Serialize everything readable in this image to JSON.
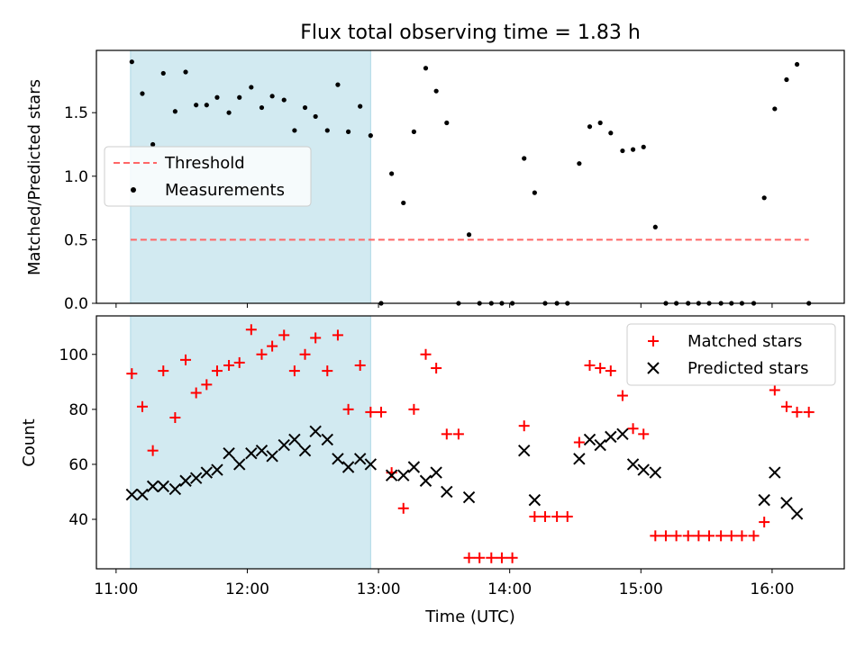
{
  "figure": {
    "title": "Flux total observing time = 1.83 h",
    "xlabel": "Time (UTC)",
    "x_ticks": [
      "11:00",
      "12:00",
      "13:00",
      "14:00",
      "15:00",
      "16:00"
    ],
    "x_tick_hours": [
      11,
      12,
      13,
      14,
      15,
      16
    ],
    "xlim": [
      10.85,
      16.55
    ],
    "shaded_interval": [
      11.11,
      12.94
    ],
    "shade_color": "#add8e6"
  },
  "chart_data": [
    {
      "type": "scatter",
      "ylabel": "Matched/Predicted stars",
      "ylim": [
        0,
        1.99
      ],
      "y_ticks": [
        "0.0",
        "0.5",
        "1.0",
        "1.5"
      ],
      "y_tick_values": [
        0,
        0.5,
        1.0,
        1.5
      ],
      "legend": "center-left",
      "threshold": {
        "name": "Threshold",
        "y": 0.5,
        "x_range": [
          11.11,
          16.28
        ],
        "color": "#ff6666",
        "style": "dashed"
      },
      "series": [
        {
          "name": "Measurements",
          "color": "#000000",
          "marker": "dot",
          "x": [
            11.12,
            11.2,
            11.28,
            11.36,
            11.45,
            11.53,
            11.61,
            11.69,
            11.77,
            11.86,
            11.94,
            12.03,
            12.11,
            12.19,
            12.28,
            12.36,
            12.44,
            12.52,
            12.61,
            12.69,
            12.77,
            12.86,
            12.94,
            13.02,
            13.1,
            13.19,
            13.27,
            13.36,
            13.44,
            13.52,
            13.61,
            13.69,
            13.77,
            13.86,
            13.94,
            14.02,
            14.11,
            14.19,
            14.27,
            14.36,
            14.44,
            14.53,
            14.61,
            14.69,
            14.77,
            14.86,
            14.94,
            15.02,
            15.11,
            15.19,
            15.27,
            15.36,
            15.44,
            15.52,
            15.61,
            15.69,
            15.77,
            15.86,
            15.94,
            16.02,
            16.11,
            16.19,
            16.28
          ],
          "y": [
            1.9,
            1.65,
            1.25,
            1.81,
            1.51,
            1.82,
            1.56,
            1.56,
            1.62,
            1.5,
            1.62,
            1.7,
            1.54,
            1.63,
            1.6,
            1.36,
            1.54,
            1.47,
            1.36,
            1.72,
            1.35,
            1.55,
            1.32,
            0.0,
            1.02,
            0.79,
            1.35,
            1.85,
            1.67,
            1.42,
            0.0,
            0.54,
            0.0,
            0.0,
            0.0,
            0.0,
            1.14,
            0.87,
            0.0,
            0.0,
            0.0,
            1.1,
            1.39,
            1.42,
            1.34,
            1.2,
            1.21,
            1.23,
            0.6,
            0.0,
            0.0,
            0.0,
            0.0,
            0.0,
            0.0,
            0.0,
            0.0,
            0.0,
            0.83,
            1.53,
            1.76,
            1.88,
            0.0
          ]
        }
      ]
    },
    {
      "type": "scatter",
      "ylabel": "Count",
      "ylim": [
        22,
        114
      ],
      "y_ticks": [
        "40",
        "60",
        "80",
        "100"
      ],
      "y_tick_values": [
        40,
        60,
        80,
        100
      ],
      "legend": "top-right",
      "series": [
        {
          "name": "Matched stars",
          "color": "#ff0000",
          "marker": "plus",
          "x": [
            11.12,
            11.2,
            11.28,
            11.36,
            11.45,
            11.53,
            11.61,
            11.69,
            11.77,
            11.86,
            11.94,
            12.03,
            12.11,
            12.19,
            12.28,
            12.36,
            12.44,
            12.52,
            12.61,
            12.69,
            12.77,
            12.86,
            12.94,
            13.02,
            13.1,
            13.19,
            13.27,
            13.36,
            13.44,
            13.52,
            13.61,
            13.69,
            13.77,
            13.86,
            13.94,
            14.02,
            14.11,
            14.19,
            14.27,
            14.36,
            14.44,
            14.53,
            14.61,
            14.69,
            14.77,
            14.86,
            14.94,
            15.02,
            15.11,
            15.19,
            15.27,
            15.36,
            15.44,
            15.52,
            15.61,
            15.69,
            15.77,
            15.86,
            15.94,
            16.02,
            16.11,
            16.19,
            16.28
          ],
          "y": [
            93,
            81,
            65,
            94,
            77,
            98,
            86,
            89,
            94,
            96,
            97,
            109,
            100,
            103,
            107,
            94,
            100,
            106,
            94,
            107,
            80,
            96,
            79,
            79,
            57,
            44,
            80,
            100,
            95,
            71,
            71,
            26,
            26,
            26,
            26,
            26,
            74,
            41,
            41,
            41,
            41,
            68,
            96,
            95,
            94,
            85,
            73,
            71,
            34,
            34,
            34,
            34,
            34,
            34,
            34,
            34,
            34,
            34,
            39,
            87,
            81,
            79,
            79
          ]
        },
        {
          "name": "Predicted stars",
          "color": "#000000",
          "marker": "x",
          "x": [
            11.12,
            11.2,
            11.28,
            11.36,
            11.45,
            11.53,
            11.61,
            11.69,
            11.77,
            11.86,
            11.94,
            12.03,
            12.11,
            12.19,
            12.28,
            12.36,
            12.44,
            12.52,
            12.61,
            12.69,
            12.77,
            12.86,
            12.94,
            13.1,
            13.19,
            13.27,
            13.36,
            13.44,
            13.52,
            13.69,
            14.11,
            14.19,
            14.53,
            14.61,
            14.69,
            14.77,
            14.86,
            14.94,
            15.02,
            15.11,
            15.94,
            16.02,
            16.11,
            16.19
          ],
          "y": [
            49,
            49,
            52,
            52,
            51,
            54,
            55,
            57,
            58,
            64,
            60,
            64,
            65,
            63,
            67,
            69,
            65,
            72,
            69,
            62,
            59,
            62,
            60,
            56,
            56,
            59,
            54,
            57,
            50,
            48,
            65,
            47,
            62,
            69,
            67,
            70,
            71,
            60,
            58,
            57,
            47,
            57,
            46,
            42
          ]
        }
      ]
    }
  ]
}
